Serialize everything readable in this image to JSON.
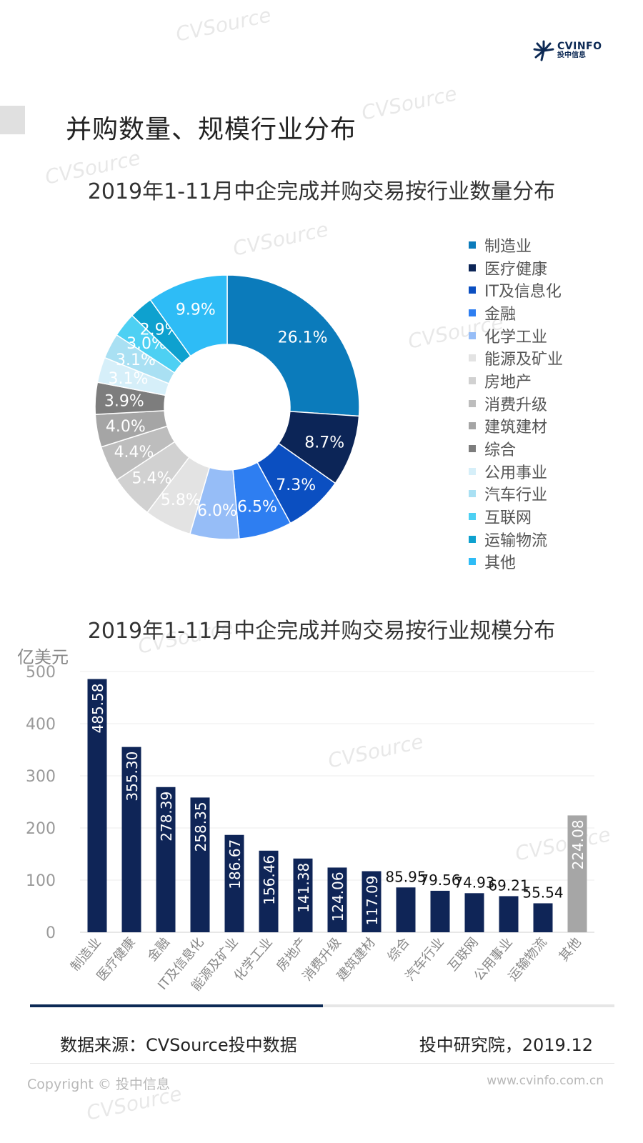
{
  "brand": {
    "name_en": "CVINFO",
    "name_cn": "投中信息"
  },
  "page_title": "并购数量、规模行业分布",
  "watermark_text": "CVSource",
  "colors": {
    "navy": "#0f2557",
    "gray_bar": "#a6a6a6",
    "accent_dark": "#0d2a55"
  },
  "chart_data": [
    {
      "type": "donut",
      "title": "2019年1-11月中企完成并购交易按行业数量分布",
      "categories": [
        "制造业",
        "医疗健康",
        "IT及信息化",
        "金融",
        "化学工业",
        "能源及矿业",
        "房地产",
        "消费升级",
        "建筑建材",
        "综合",
        "公用事业",
        "汽车行业",
        "互联网",
        "运输物流",
        "其他"
      ],
      "values": [
        26.1,
        8.7,
        7.3,
        6.5,
        6.0,
        5.8,
        5.4,
        4.4,
        4.0,
        3.9,
        3.1,
        3.1,
        3.0,
        2.9,
        9.9
      ],
      "labels": [
        "26.1%",
        "8.7%",
        "7.3%",
        "6.5%",
        "6.0%",
        "5.8%",
        "5.4%",
        "4.4%",
        "4.0%",
        "3.9%",
        "3.1%",
        "3.1%",
        "3.0%",
        "2.9%",
        "9.9%"
      ],
      "colors": [
        "#0b7bbb",
        "#0c2557",
        "#0b4fc1",
        "#2e7ef1",
        "#96bdf7",
        "#e3e3e3",
        "#d1d1d1",
        "#bdbdbd",
        "#a5a5a5",
        "#7d7d7d",
        "#d6eff9",
        "#a9e0f3",
        "#4dd0f3",
        "#0ea1cf",
        "#2ebcf6"
      ],
      "legend_position": "right"
    },
    {
      "type": "bar",
      "title": "2019年1-11月中企完成并购交易按行业规模分布",
      "ylabel": "亿美元",
      "ylim": [
        0,
        500
      ],
      "yticks": [
        0,
        100,
        200,
        300,
        400,
        500
      ],
      "categories": [
        "制造业",
        "医疗健康",
        "金融",
        "IT及信息化",
        "能源及矿业",
        "化学工业",
        "房地产",
        "消费升级",
        "建筑建材",
        "综合",
        "汽车行业",
        "互联网",
        "公用事业",
        "运输物流",
        "其他"
      ],
      "values": [
        485.58,
        355.3,
        278.39,
        258.35,
        186.67,
        156.46,
        141.38,
        124.06,
        117.09,
        85.95,
        79.56,
        74.93,
        69.21,
        55.54,
        224.08
      ],
      "value_labels": [
        "485.58",
        "355.30",
        "278.39",
        "258.35",
        "186.67",
        "156.46",
        "141.38",
        "124.06",
        "117.09",
        "85.95",
        "79.56",
        "74.93",
        "69.21",
        "55.54",
        "224.08"
      ],
      "bar_colors": [
        "#0f2557",
        "#0f2557",
        "#0f2557",
        "#0f2557",
        "#0f2557",
        "#0f2557",
        "#0f2557",
        "#0f2557",
        "#0f2557",
        "#0f2557",
        "#0f2557",
        "#0f2557",
        "#0f2557",
        "#0f2557",
        "#a6a6a6"
      ],
      "grid": true
    }
  ],
  "footer": {
    "source": "数据来源：CVSource投中数据",
    "publisher": "投中研究院，2019.12",
    "copyright": "Copyright © 投中信息",
    "website": "www.cvinfo.com.cn"
  }
}
